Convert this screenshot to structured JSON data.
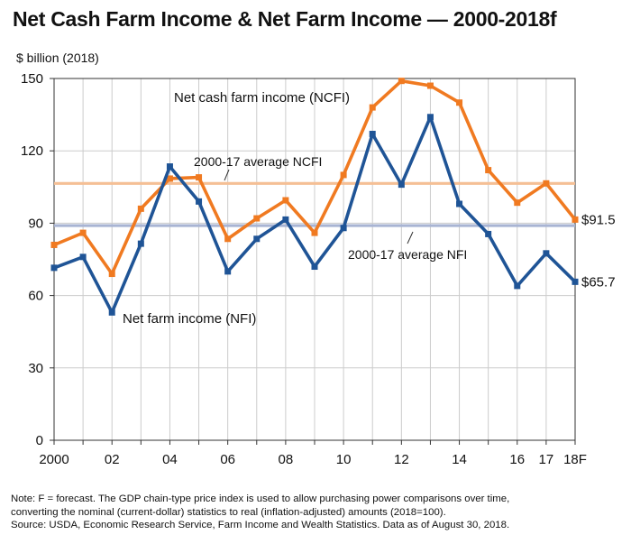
{
  "title": "Net Cash Farm Income & Net Farm Income — 2000-2018f",
  "y_unit_label": "$ billion (2018)",
  "notes": [
    "Note: F = forecast. The GDP chain-type price index is used to allow purchasing power comparisons over time,",
    "converting the nominal (current-dollar) statistics to real (inflation-adjusted) amounts (2018=100).",
    "Source: USDA, Economic Research Service, Farm Income and Wealth Statistics. Data as of August 30, 2018."
  ],
  "chart_data": {
    "type": "line",
    "title": "Net Cash Farm Income & Net Farm Income — 2000-2018f",
    "ylabel": "$ billion (2018)",
    "xlabel": "",
    "ylim": [
      0,
      150
    ],
    "yticks": [
      0,
      30,
      60,
      90,
      120,
      150
    ],
    "x": [
      2000,
      2001,
      2002,
      2003,
      2004,
      2005,
      2006,
      2007,
      2008,
      2009,
      2010,
      2011,
      2012,
      2013,
      2014,
      2015,
      2016,
      2017,
      2018
    ],
    "xtick_labels": [
      {
        "x": 2000,
        "label": "2000"
      },
      {
        "x": 2002,
        "label": "02"
      },
      {
        "x": 2004,
        "label": "04"
      },
      {
        "x": 2006,
        "label": "06"
      },
      {
        "x": 2008,
        "label": "08"
      },
      {
        "x": 2010,
        "label": "10"
      },
      {
        "x": 2012,
        "label": "12"
      },
      {
        "x": 2014,
        "label": "14"
      },
      {
        "x": 2016,
        "label": "16"
      },
      {
        "x": 2017,
        "label": "17"
      },
      {
        "x": 2018,
        "label": "18F"
      }
    ],
    "series": [
      {
        "name": "Net cash farm income (NCFI)",
        "color": "#f07a21",
        "values": [
          81,
          86,
          69,
          96,
          108.5,
          109,
          83.5,
          92,
          99.5,
          86,
          110,
          138,
          149,
          147,
          140,
          112,
          98.5,
          106.5,
          91.5
        ],
        "end_label": "$91.5"
      },
      {
        "name": "Net farm income (NFI)",
        "color": "#1f5496",
        "values": [
          71.5,
          76,
          53,
          81.5,
          113.5,
          99,
          70,
          83.5,
          91.5,
          72,
          88,
          127,
          106,
          134,
          98,
          85.5,
          64,
          77.5,
          65.7
        ],
        "end_label": "$65.7"
      }
    ],
    "reference_lines": [
      {
        "name": "2000-17 average NCFI",
        "value": 106.5,
        "color": "#f5bf95"
      },
      {
        "name": "2000-17 average NFI",
        "value": 89,
        "color": "#a8b4d3"
      }
    ],
    "grid": {
      "horizontal": true,
      "vertical": true,
      "color": "#cccccc"
    },
    "legend": "none (series labeled directly on chart)"
  }
}
